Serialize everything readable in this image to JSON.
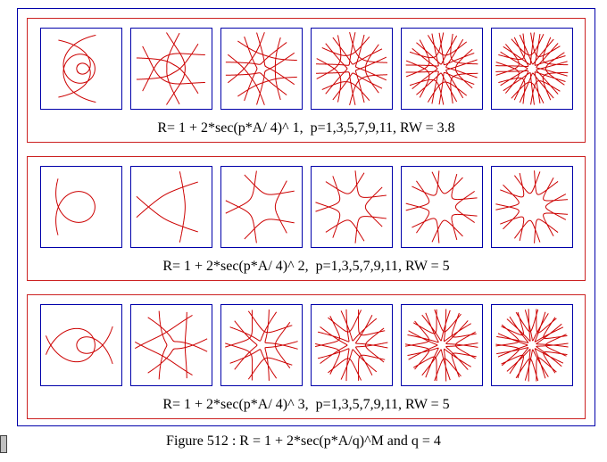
{
  "panels": [
    {
      "caption": "R= 1 + 2*sec(p*A/ 4)^ 1,  p=1,3,5,7,9,11, RW = 3.8",
      "M": 1,
      "p_values": [
        1,
        3,
        5,
        7,
        9,
        11
      ]
    },
    {
      "caption": "R= 1 + 2*sec(p*A/ 4)^ 2,  p=1,3,5,7,9,11, RW = 5",
      "M": 2,
      "p_values": [
        1,
        3,
        5,
        7,
        9,
        11
      ]
    },
    {
      "caption": "R= 1 + 2*sec(p*A/ 4)^ 3,  p=1,3,5,7,9,11, RW = 5",
      "M": 3,
      "p_values": [
        1,
        3,
        5,
        7,
        9,
        11
      ]
    }
  ],
  "q": 4,
  "figure_caption": "Figure 512 : R = 1 + 2*sec(p*A/q)^M and q = 4",
  "colors": {
    "curve": "#cc0000",
    "tile_border": "#0000aa",
    "panel_border": "#cc2222",
    "outer_border": "#0000aa"
  }
}
